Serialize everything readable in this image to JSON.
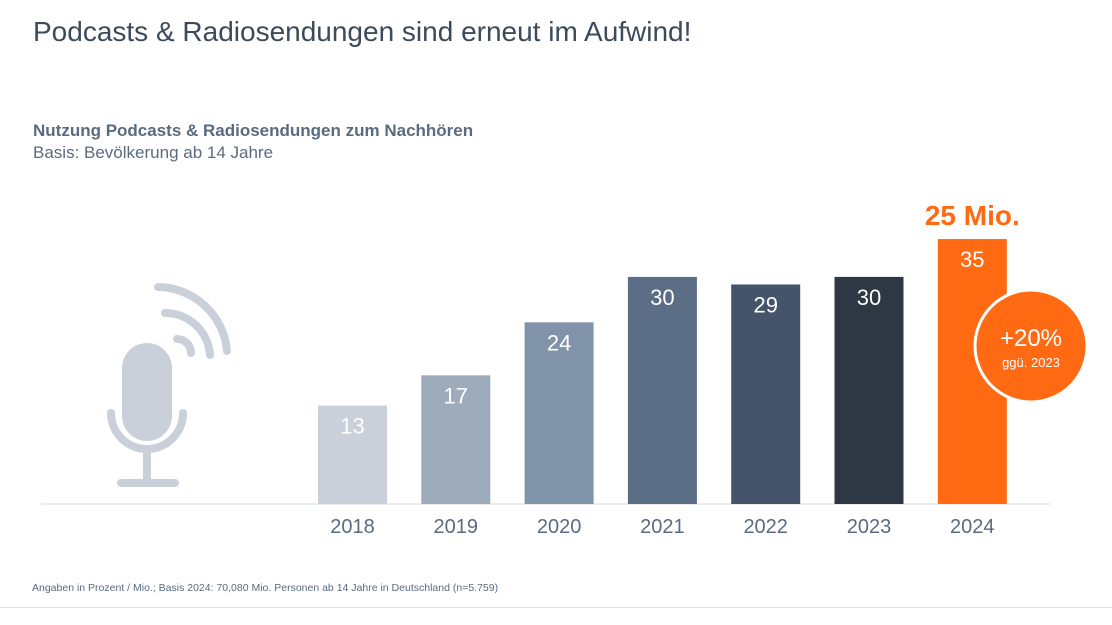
{
  "title": "Podcasts & Radiosendungen sind erneut im Aufwind!",
  "subtitle": "Nutzung Podcasts & Radiosendungen zum Nachhören",
  "basis": "Basis: Bevölkerung ab 14 Jahre",
  "footnote": "Angaben in Prozent / Mio.; Basis 2024: 70,080 Mio. Personen ab 14 Jahre in Deutschland (n=5.759)",
  "icon": "microphone-podcast-icon",
  "chart_data": {
    "type": "bar",
    "title": "Nutzung Podcasts & Radiosendungen zum Nachhören",
    "subtitle": "Basis: Bevölkerung ab 14 Jahre",
    "xlabel": "",
    "ylabel": "",
    "unit": "%",
    "ylim": [
      0,
      35
    ],
    "grid": false,
    "categories": [
      "2018",
      "2019",
      "2020",
      "2021",
      "2022",
      "2023",
      "2024"
    ],
    "values": [
      13,
      17,
      24,
      30,
      29,
      30,
      35
    ],
    "colors": [
      "#c9d0d9",
      "#9eabba",
      "#8193a8",
      "#5b6e86",
      "#45546a",
      "#2d3844",
      "#ff6a13"
    ],
    "annotations": {
      "highlight": "25 Mio.",
      "badge_main": "+20%",
      "badge_sub": "ggü. 2023"
    }
  }
}
